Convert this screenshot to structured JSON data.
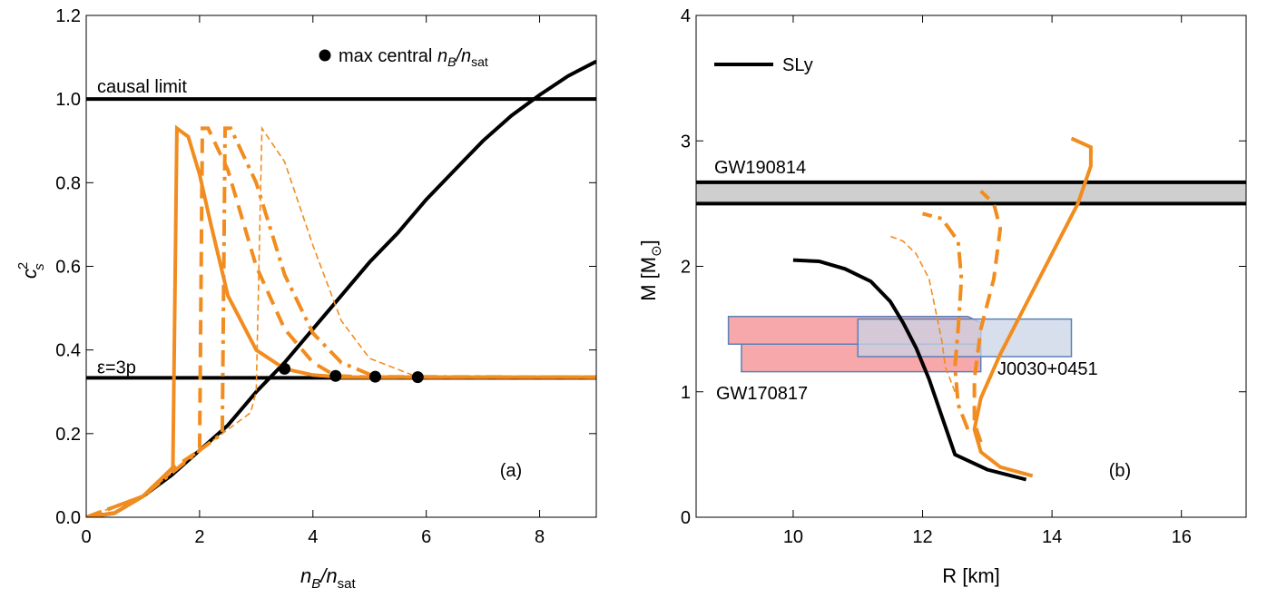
{
  "colors": {
    "orange": "#f28c1e",
    "black": "#000000",
    "gray_band": "#cfcfcf",
    "pink": "#f6a3a6",
    "blue": "#c9d4e6",
    "blue_edge": "#5b80b9"
  },
  "chart_data": [
    {
      "type": "line",
      "panel_label": "(a)",
      "xlabel": {
        "main": "n",
        "sub": "B",
        "slash": "/n",
        "sub2": "sat"
      },
      "ylabel": {
        "main": "c",
        "sup": "2",
        "sub": "s"
      },
      "xlim": [
        0,
        9
      ],
      "ylim": [
        0,
        1.2
      ],
      "xticks": [
        "0",
        "2",
        "4",
        "6",
        "8"
      ],
      "xtick_values": [
        0,
        2,
        4,
        6,
        8
      ],
      "yticks": [
        "0.0",
        "0.2",
        "0.4",
        "0.6",
        "0.8",
        "1.0",
        "1.2"
      ],
      "ytick_values": [
        0,
        0.2,
        0.4,
        0.6,
        0.8,
        1.0,
        1.2
      ],
      "hlines": [
        {
          "y": 1.0,
          "label": "causal limit"
        },
        {
          "y": 0.3333,
          "label": "ε=3p"
        }
      ],
      "legend": {
        "marker": "●",
        "text": "max central ",
        "var": "n",
        "var_sub": "B",
        "slash": "/n",
        "var_sub2": "sat",
        "position": "top-right"
      },
      "max_central_points": [
        [
          3.5,
          0.355
        ],
        [
          4.4,
          0.338
        ],
        [
          5.1,
          0.336
        ],
        [
          5.85,
          0.335
        ]
      ],
      "series": [
        {
          "style": "solid-black",
          "x": [
            0,
            0.5,
            1,
            1.5,
            2,
            2.5,
            3,
            3.5,
            4,
            4.5,
            5,
            5.5,
            6,
            6.5,
            7,
            7.5,
            8,
            8.5,
            9
          ],
          "y": [
            0,
            0.01,
            0.05,
            0.1,
            0.16,
            0.22,
            0.3,
            0.37,
            0.45,
            0.53,
            0.61,
            0.68,
            0.76,
            0.83,
            0.9,
            0.96,
            1.01,
            1.055,
            1.09
          ]
        },
        {
          "style": "solid-orange",
          "x": [
            0,
            0.5,
            1,
            1.5,
            1.53,
            1.6,
            1.8,
            2.0,
            2.2,
            2.5,
            3.0,
            3.5,
            4.0,
            4.5,
            9
          ],
          "y": [
            0,
            0.01,
            0.05,
            0.115,
            0.12,
            0.93,
            0.91,
            0.82,
            0.7,
            0.53,
            0.4,
            0.355,
            0.34,
            0.335,
            0.335
          ]
        },
        {
          "style": "dashed-orange",
          "x": [
            0,
            1,
            1.5,
            2.0,
            2.05,
            2.15,
            2.5,
            3.0,
            3.5,
            4.0,
            4.4,
            5.0,
            9
          ],
          "y": [
            0,
            0.05,
            0.115,
            0.16,
            0.93,
            0.93,
            0.83,
            0.6,
            0.45,
            0.37,
            0.338,
            0.335,
            0.335
          ]
        },
        {
          "style": "dashdot-orange",
          "x": [
            0,
            1,
            2,
            2.4,
            2.45,
            2.55,
            3.0,
            3.5,
            4.0,
            4.5,
            5.1,
            9
          ],
          "y": [
            0,
            0.05,
            0.16,
            0.2,
            0.93,
            0.93,
            0.8,
            0.58,
            0.44,
            0.37,
            0.336,
            0.335
          ]
        },
        {
          "style": "thin-dashed-orange",
          "x": [
            0,
            1,
            2,
            2.9,
            3.0,
            3.1,
            3.5,
            4.0,
            4.5,
            5.0,
            5.85,
            9
          ],
          "y": [
            0,
            0.05,
            0.16,
            0.25,
            0.3,
            0.93,
            0.85,
            0.65,
            0.47,
            0.38,
            0.335,
            0.335
          ]
        }
      ]
    },
    {
      "type": "line",
      "panel_label": "(b)",
      "xlabel": "R [km]",
      "ylabel": {
        "main": "M [M",
        "sub": "⊙",
        "close": "]"
      },
      "xlim": [
        8.5,
        17
      ],
      "ylim": [
        0,
        4
      ],
      "xticks": [
        "10",
        "12",
        "14",
        "16"
      ],
      "xtick_values": [
        10,
        12,
        14,
        16
      ],
      "yticks": [
        "0",
        "1",
        "2",
        "3",
        "4"
      ],
      "ytick_values": [
        0,
        1,
        2,
        3,
        4
      ],
      "legend": {
        "entries": [
          {
            "name": "SLy",
            "style": "solid-black"
          }
        ],
        "position": "top-left"
      },
      "bands": [
        {
          "label": "GW190814",
          "y0": 2.5,
          "y1": 2.67
        }
      ],
      "regions": [
        {
          "label": "GW170817",
          "kind": "pink",
          "poly": [
            [
              9.0,
              1.6
            ],
            [
              12.7,
              1.6
            ],
            [
              12.9,
              1.55
            ],
            [
              12.9,
              1.38
            ],
            [
              9.2,
              1.38
            ],
            [
              9.2,
              1.16
            ],
            [
              12.9,
              1.16
            ],
            [
              12.9,
              1.38
            ],
            [
              9.0,
              1.38
            ]
          ]
        },
        {
          "label": "J0030+0451",
          "kind": "blue",
          "poly": [
            [
              11.0,
              1.58
            ],
            [
              14.3,
              1.58
            ],
            [
              14.3,
              1.28
            ],
            [
              11.0,
              1.28
            ]
          ]
        }
      ],
      "series": [
        {
          "name": "SLy",
          "style": "solid-black",
          "R": [
            13.6,
            13.0,
            12.5,
            12.3,
            12.1,
            11.9,
            11.7,
            11.5,
            11.2,
            10.8,
            10.4,
            10.0
          ],
          "M": [
            0.3,
            0.38,
            0.5,
            0.8,
            1.1,
            1.35,
            1.55,
            1.72,
            1.88,
            1.98,
            2.04,
            2.05
          ]
        },
        {
          "style": "solid-orange",
          "R": [
            13.7,
            13.2,
            12.9,
            12.8,
            12.9,
            13.2,
            13.6,
            14.0,
            14.4,
            14.6,
            14.6,
            14.3
          ],
          "M": [
            0.33,
            0.4,
            0.52,
            0.7,
            0.95,
            1.3,
            1.7,
            2.1,
            2.5,
            2.8,
            2.95,
            3.02
          ]
        },
        {
          "style": "dashed-orange",
          "R": [
            12.9,
            12.8,
            12.8,
            12.9,
            13.1,
            13.2,
            13.1,
            12.9
          ],
          "M": [
            0.6,
            0.75,
            1.1,
            1.5,
            1.9,
            2.3,
            2.5,
            2.6
          ]
        },
        {
          "style": "dashdot-orange",
          "R": [
            12.7,
            12.55,
            12.5,
            12.55,
            12.6,
            12.55,
            12.3,
            12.0
          ],
          "M": [
            0.7,
            0.9,
            1.2,
            1.5,
            1.9,
            2.2,
            2.38,
            2.42
          ]
        },
        {
          "style": "thin-dashed-orange",
          "R": [
            12.5,
            12.35,
            12.3,
            12.2,
            12.1,
            11.9,
            11.7,
            11.5
          ],
          "M": [
            1.0,
            1.2,
            1.4,
            1.65,
            1.9,
            2.1,
            2.2,
            2.24
          ]
        }
      ]
    }
  ]
}
